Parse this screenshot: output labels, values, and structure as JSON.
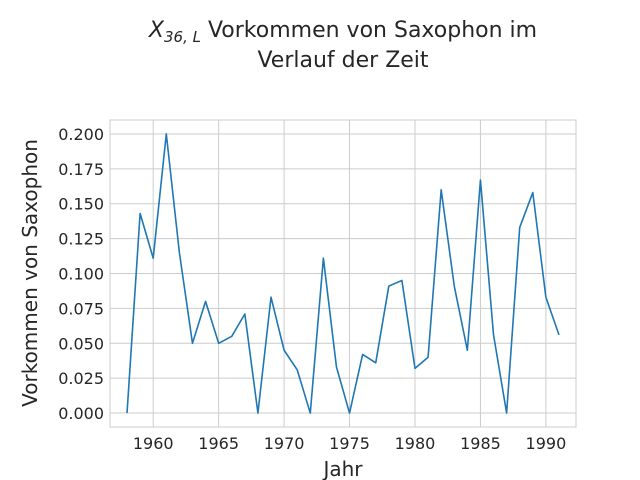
{
  "chart_data": {
    "type": "line",
    "title_math": "X",
    "title_subscript": "36, L",
    "title_line1": " Vorkommen von Saxophon im",
    "title_line2": "Verlauf der Zeit",
    "xlabel": "Jahr",
    "ylabel": "Vorkommen von Saxophon",
    "xlim": [
      1956.7,
      1992.3
    ],
    "ylim": [
      -0.01,
      0.21
    ],
    "xticks": [
      1960,
      1965,
      1970,
      1975,
      1980,
      1985,
      1990
    ],
    "yticks": [
      0.0,
      0.025,
      0.05,
      0.075,
      0.1,
      0.125,
      0.15,
      0.175,
      0.2
    ],
    "ytick_labels": [
      "0.000",
      "0.025",
      "0.050",
      "0.075",
      "0.100",
      "0.125",
      "0.150",
      "0.175",
      "0.200"
    ],
    "grid": true,
    "line_color": "#1f77b4",
    "series": [
      {
        "x": [
          1958,
          1959,
          1960,
          1961,
          1962,
          1963,
          1964,
          1965,
          1966,
          1967,
          1968,
          1969,
          1970,
          1971,
          1972,
          1973,
          1974,
          1975,
          1976,
          1977,
          1978,
          1979,
          1980,
          1981,
          1982,
          1983,
          1984,
          1985,
          1986,
          1987,
          1988,
          1989,
          1990,
          1991
        ],
        "values": [
          0.0,
          0.143,
          0.111,
          0.2,
          0.115,
          0.05,
          0.08,
          0.05,
          0.055,
          0.071,
          0.0,
          0.083,
          0.045,
          0.031,
          0.0,
          0.111,
          0.033,
          0.0,
          0.042,
          0.036,
          0.091,
          0.095,
          0.032,
          0.04,
          0.16,
          0.091,
          0.045,
          0.167,
          0.056,
          0.0,
          0.133,
          0.158,
          0.083,
          0.056
        ]
      }
    ]
  }
}
